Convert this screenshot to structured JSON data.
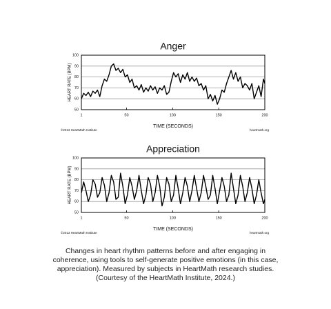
{
  "chart_data": [
    {
      "type": "line",
      "title": "Anger",
      "x_label": "TIME (SECONDS)",
      "y_label": "HEART RATE (BPM)",
      "source": "©2013 HeartMath Institute",
      "url": "heartmath.org",
      "color": "#000000",
      "grid": true,
      "xlim": [
        1,
        200
      ],
      "xticks": [
        1,
        50,
        100,
        150,
        200
      ],
      "ylim": [
        50,
        100
      ],
      "yticks": [
        50,
        60,
        70,
        80,
        90,
        100
      ],
      "x": [
        1,
        3.5,
        6,
        8.5,
        11,
        13.5,
        16,
        18.5,
        21,
        23.5,
        26,
        28.5,
        31,
        33.5,
        36,
        38.5,
        41,
        43.5,
        46,
        48.5,
        51,
        53.5,
        56,
        58.5,
        61,
        63.5,
        66,
        68.5,
        71,
        73.5,
        76,
        78.5,
        81,
        83.5,
        86,
        88.5,
        91,
        93.5,
        96,
        98.5,
        101,
        103.5,
        106,
        108.5,
        111,
        113.5,
        116,
        118.5,
        121,
        123.5,
        126,
        128.5,
        131,
        133.5,
        136,
        138.5,
        141,
        143.5,
        146,
        148.5,
        151,
        153.5,
        156,
        158.5,
        161,
        163.5,
        166,
        168.5,
        171,
        173.5,
        176,
        178.5,
        181,
        183.5,
        186,
        188.5,
        191,
        193.5,
        196,
        198.5,
        200
      ],
      "values": [
        60,
        65,
        63,
        66,
        62,
        67,
        65,
        68,
        62,
        72,
        78,
        76,
        82,
        90,
        92,
        86,
        88,
        84,
        87,
        80,
        82,
        75,
        78,
        70,
        72,
        68,
        73,
        66,
        70,
        67,
        72,
        68,
        71,
        65,
        70,
        68,
        72,
        64,
        66,
        76,
        84,
        80,
        83,
        75,
        82,
        78,
        84,
        76,
        80,
        76,
        79,
        72,
        74,
        68,
        72,
        60,
        64,
        58,
        63,
        55,
        60,
        68,
        66,
        74,
        80,
        86,
        78,
        84,
        76,
        80,
        70,
        74,
        72,
        68,
        74,
        60,
        66,
        72,
        62,
        78,
        74
      ]
    },
    {
      "type": "line",
      "title": "Appreciation",
      "x_label": "TIME (SECONDS)",
      "y_label": "HEART RATE (BPM)",
      "source": "©2013 HeartMath Institute",
      "url": "heartmath.org",
      "color": "#000000",
      "grid": true,
      "xlim": [
        1,
        200
      ],
      "xticks": [
        1,
        50,
        100,
        150,
        200
      ],
      "ylim": [
        50,
        100
      ],
      "yticks": [
        50,
        60,
        70,
        80,
        90,
        100
      ],
      "x": [
        1,
        3.5,
        6,
        8.5,
        11,
        13.5,
        16,
        18.5,
        21,
        23.5,
        26,
        28.5,
        31,
        33.5,
        36,
        38.5,
        41,
        43.5,
        46,
        48.5,
        51,
        53.5,
        56,
        58.5,
        61,
        63.5,
        66,
        68.5,
        71,
        73.5,
        76,
        78.5,
        81,
        83.5,
        86,
        88.5,
        91,
        93.5,
        96,
        98.5,
        101,
        103.5,
        106,
        108.5,
        111,
        113.5,
        116,
        118.5,
        121,
        123.5,
        126,
        128.5,
        131,
        133.5,
        136,
        138.5,
        141,
        143.5,
        146,
        148.5,
        151,
        153.5,
        156,
        158.5,
        161,
        163.5,
        166,
        168.5,
        171,
        173.5,
        176,
        178.5,
        181,
        183.5,
        186,
        188.5,
        191,
        193.5,
        196,
        198.5,
        200
      ],
      "values": [
        68,
        78,
        70,
        60,
        66,
        80,
        76,
        64,
        68,
        82,
        75,
        60,
        68,
        84,
        78,
        62,
        64,
        86,
        74,
        58,
        66,
        82,
        74,
        62,
        70,
        84,
        70,
        58,
        66,
        82,
        76,
        60,
        68,
        84,
        74,
        56,
        64,
        82,
        76,
        60,
        66,
        84,
        72,
        58,
        68,
        82,
        74,
        60,
        70,
        84,
        72,
        60,
        68,
        84,
        74,
        62,
        66,
        84,
        72,
        58,
        70,
        82,
        74,
        60,
        66,
        86,
        72,
        58,
        66,
        84,
        74,
        60,
        68,
        82,
        72,
        58,
        66,
        80,
        68,
        58,
        62
      ]
    }
  ],
  "caption": "Changes in heart rhythm patterns before and after engaging in coherence, using tools to self-generate positive emotions (in this case, appreciation). Measured by subjects in HeartMath research studies. (Courtesy of the HeartMath Institute, 2024.)"
}
